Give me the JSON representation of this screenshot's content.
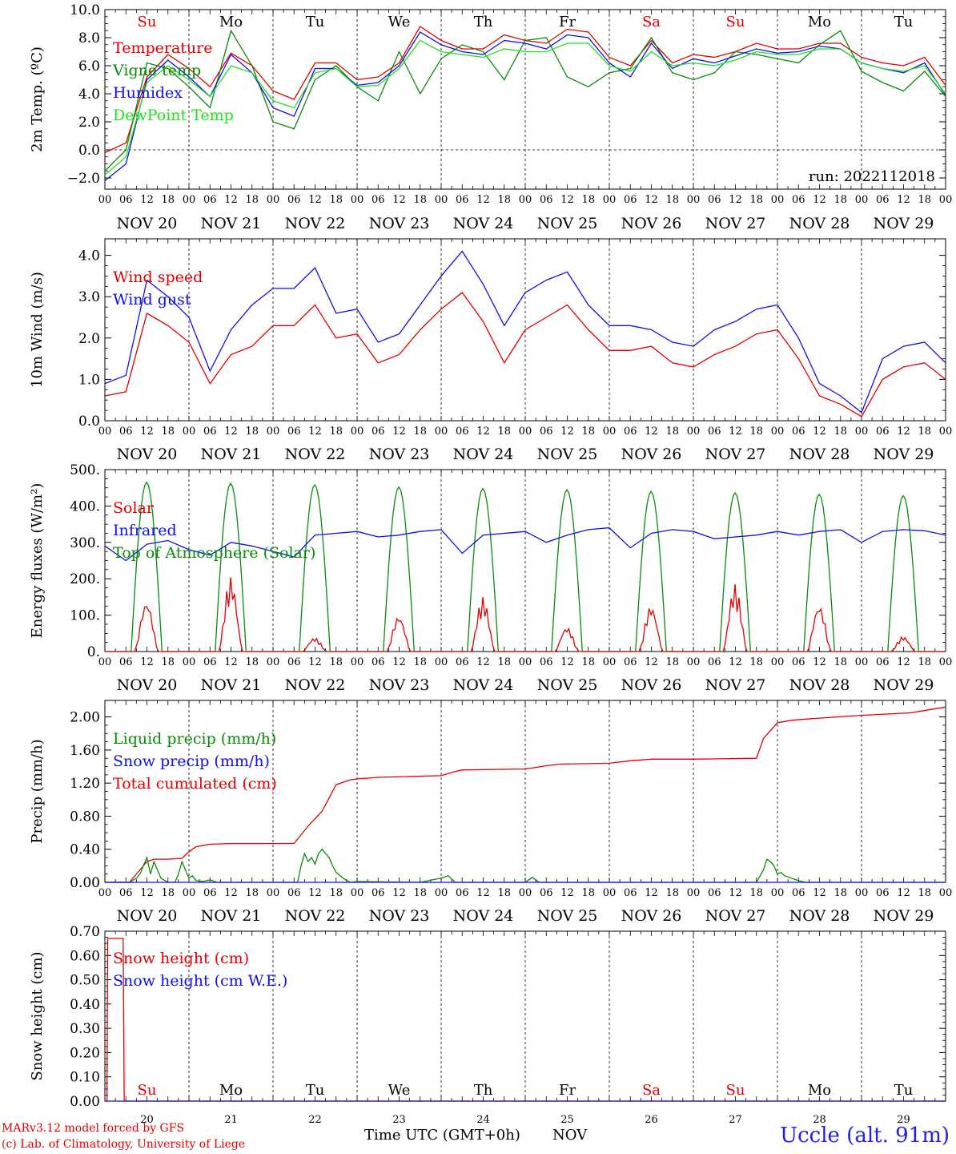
{
  "run_label": "run: 2022112018",
  "day_names": [
    "Su",
    "Mo",
    "Tu",
    "We",
    "Th",
    "Fr",
    "Sa",
    "Su",
    "Mo",
    "Tu"
  ],
  "weekend_days": [
    0,
    6,
    7
  ],
  "date_labels": [
    "NOV 20",
    "NOV 21",
    "NOV 22",
    "NOV 23",
    "NOV 24",
    "NOV 25",
    "NOV 26",
    "NOV 27",
    "NOV 28",
    "NOV 29"
  ],
  "hour_ticks": [
    "00",
    "06",
    "12",
    "18"
  ],
  "last_hour_tick": "00",
  "bottom_day_numbers": [
    "20",
    "21",
    "22",
    "23",
    "24",
    "25",
    "26",
    "27",
    "28",
    "29"
  ],
  "bottom_month": "NOV",
  "xlabel": "Time UTC (GMT+0h)",
  "footer": {
    "model": "MARv3.12 model forced by GFS",
    "credit": "(c) Lab. of Climatology, University of Liege",
    "station": "Uccle (alt. 91m)"
  },
  "colors": {
    "red": "#e00000",
    "green": "#0a8a0a",
    "blue": "#1010e0",
    "lightgreen": "#20e020",
    "grid": "#000000"
  },
  "chart_data": [
    {
      "type": "line",
      "ylabel": "2m Temp. (ºC)",
      "ylim": [
        -2.8,
        10.0
      ],
      "yticks": [
        -2.0,
        0.0,
        2.0,
        4.0,
        6.0,
        8.0,
        10.0
      ],
      "ytick_labels": [
        "−2.0",
        "0.0",
        "2.0",
        "4.0",
        "6.0",
        "8.0",
        "10.0"
      ],
      "x_hours": [
        0,
        6,
        12,
        18,
        24,
        30,
        36,
        42,
        48,
        54,
        60,
        66,
        72,
        78,
        84,
        90,
        96,
        102,
        108,
        114,
        120,
        126,
        132,
        138,
        144,
        150,
        156,
        162,
        168,
        174,
        180,
        186,
        192,
        198,
        204,
        210,
        216,
        222,
        228,
        234,
        240
      ],
      "zero_line": true,
      "legend": [
        "Temperature",
        "Vigne temp",
        "Humidex",
        "DewPoint Temp"
      ],
      "series": [
        {
          "name": "Temperature",
          "color": "red",
          "values": [
            -0.2,
            0.5,
            5.2,
            6.8,
            5.8,
            4.5,
            6.9,
            6.0,
            4.2,
            3.6,
            6.2,
            6.2,
            5.0,
            5.2,
            6.2,
            8.8,
            7.8,
            7.2,
            7.2,
            8.2,
            7.8,
            7.6,
            8.6,
            8.4,
            6.6,
            6.0,
            7.8,
            6.2,
            6.8,
            6.6,
            7.0,
            7.6,
            7.2,
            7.2,
            7.6,
            7.6,
            6.6,
            6.2,
            6.0,
            6.6,
            4.6
          ]
        },
        {
          "name": "Vigne temp",
          "color": "green",
          "values": [
            -1.5,
            0.0,
            6.2,
            5.8,
            4.5,
            3.0,
            8.5,
            6.0,
            2.0,
            1.5,
            5.0,
            6.0,
            4.5,
            3.5,
            7.0,
            4.0,
            6.5,
            7.5,
            7.0,
            5.0,
            7.8,
            8.0,
            5.2,
            4.5,
            5.5,
            5.8,
            8.0,
            5.5,
            5.0,
            5.5,
            7.0,
            6.8,
            6.5,
            6.2,
            7.5,
            8.5,
            5.6,
            4.8,
            4.2,
            5.6,
            3.8
          ]
        },
        {
          "name": "Humidex",
          "color": "blue",
          "values": [
            -2.2,
            -1.0,
            5.0,
            6.4,
            5.2,
            3.8,
            6.8,
            5.5,
            3.0,
            2.4,
            5.8,
            5.8,
            4.6,
            4.8,
            6.0,
            8.4,
            7.5,
            7.0,
            6.8,
            7.8,
            7.6,
            7.2,
            8.2,
            8.0,
            6.2,
            5.2,
            7.6,
            5.8,
            6.5,
            6.2,
            6.7,
            7.2,
            6.9,
            7.0,
            7.4,
            7.2,
            6.2,
            5.8,
            5.5,
            6.2,
            3.9
          ]
        },
        {
          "name": "DewPoint Temp",
          "color": "lightgreen",
          "values": [
            -1.8,
            -0.5,
            4.8,
            6.0,
            5.0,
            3.8,
            6.0,
            5.5,
            3.5,
            3.0,
            5.5,
            5.8,
            4.5,
            4.6,
            5.8,
            7.8,
            7.0,
            6.8,
            6.6,
            7.2,
            7.0,
            7.0,
            7.6,
            7.6,
            6.0,
            5.6,
            7.0,
            6.0,
            6.2,
            6.0,
            6.4,
            7.0,
            6.8,
            6.8,
            7.2,
            7.2,
            6.2,
            5.8,
            5.6,
            6.0,
            4.0
          ]
        }
      ]
    },
    {
      "type": "line",
      "ylabel": "10m Wind (m/s)",
      "ylim": [
        0.0,
        4.4
      ],
      "yticks": [
        0.0,
        1.0,
        2.0,
        3.0,
        4.0
      ],
      "ytick_labels": [
        "0.0",
        "1.0",
        "2.0",
        "3.0",
        "4.0"
      ],
      "x_hours": [
        0,
        6,
        12,
        18,
        24,
        30,
        36,
        42,
        48,
        54,
        60,
        66,
        72,
        78,
        84,
        90,
        96,
        102,
        108,
        114,
        120,
        126,
        132,
        138,
        144,
        150,
        156,
        162,
        168,
        174,
        180,
        186,
        192,
        198,
        204,
        210,
        216,
        222,
        228,
        234,
        240
      ],
      "legend": [
        "Wind speed",
        "Wind gust"
      ],
      "series": [
        {
          "name": "Wind speed",
          "color": "red",
          "values": [
            0.6,
            0.7,
            2.6,
            2.3,
            1.9,
            0.9,
            1.6,
            1.8,
            2.3,
            2.3,
            2.8,
            2.0,
            2.1,
            1.4,
            1.6,
            2.2,
            2.7,
            3.1,
            2.4,
            1.4,
            2.2,
            2.5,
            2.8,
            2.2,
            1.7,
            1.7,
            1.8,
            1.4,
            1.3,
            1.6,
            1.8,
            2.1,
            2.2,
            1.5,
            0.6,
            0.4,
            0.1,
            1.0,
            1.3,
            1.4,
            1.0
          ]
        },
        {
          "name": "Wind gust",
          "color": "blue",
          "values": [
            0.9,
            1.1,
            3.4,
            3.0,
            2.5,
            1.2,
            2.2,
            2.8,
            3.2,
            3.2,
            3.7,
            2.6,
            2.7,
            1.9,
            2.1,
            2.8,
            3.5,
            4.1,
            3.3,
            2.3,
            3.1,
            3.4,
            3.6,
            2.8,
            2.3,
            2.3,
            2.2,
            1.9,
            1.8,
            2.2,
            2.4,
            2.7,
            2.8,
            2.0,
            0.9,
            0.6,
            0.2,
            1.5,
            1.8,
            1.9,
            1.4
          ]
        }
      ]
    },
    {
      "type": "line",
      "ylabel": "Energy fluxes (W/m²)",
      "ylim": [
        0,
        500
      ],
      "yticks": [
        0,
        100,
        200,
        300,
        400,
        500
      ],
      "ytick_labels": [
        "0.",
        "100.",
        "200.",
        "300.",
        "400.",
        "500."
      ],
      "legend": [
        "Solar",
        "Infrared",
        "Top of Atmosphere (Solar)"
      ],
      "daylight": {
        "sunrise_hour": 7.5,
        "sunset_hour": 16.3
      },
      "toa_peaks": [
        465,
        462,
        458,
        452,
        448,
        445,
        440,
        436,
        432,
        428
      ],
      "solar_peaks": [
        140,
        205,
        38,
        100,
        150,
        68,
        128,
        185,
        130,
        42
      ],
      "infrared": {
        "color": "blue",
        "x": [
          0,
          6,
          12,
          18,
          24,
          30,
          36,
          42,
          48,
          54,
          60,
          66,
          72,
          78,
          84,
          90,
          96,
          102,
          108,
          114,
          120,
          126,
          132,
          138,
          144,
          150,
          156,
          162,
          168,
          174,
          180,
          186,
          192,
          198,
          204,
          210,
          216,
          222,
          228,
          234,
          240
        ],
        "values": [
          290,
          250,
          295,
          305,
          280,
          265,
          300,
          290,
          275,
          260,
          320,
          325,
          330,
          315,
          320,
          330,
          335,
          270,
          320,
          325,
          330,
          300,
          320,
          335,
          340,
          285,
          325,
          335,
          330,
          310,
          315,
          320,
          330,
          320,
          330,
          335,
          300,
          330,
          335,
          332,
          320
        ]
      }
    },
    {
      "type": "line",
      "ylabel": "Precip (mm/h)",
      "ylim": [
        0.0,
        2.2
      ],
      "yticks": [
        0.0,
        0.4,
        0.8,
        1.2,
        1.6,
        2.0
      ],
      "ytick_labels": [
        "0.00",
        "0.40",
        "0.80",
        "1.20",
        "1.60",
        "2.00"
      ],
      "legend": [
        "Liquid precip (mm/h)",
        "Snow precip (mm/h)",
        "Total cumulated (cm)"
      ],
      "series": [
        {
          "name": "Total cumulated (cm)",
          "color": "red",
          "x": [
            0,
            7,
            10,
            12,
            14,
            18,
            22,
            24,
            26,
            30,
            36,
            48,
            54,
            58,
            62,
            66,
            70,
            72,
            78,
            96,
            100,
            102,
            120,
            126,
            130,
            144,
            150,
            156,
            168,
            186,
            188,
            192,
            196,
            202,
            216,
            230,
            240
          ],
          "values": [
            0.0,
            0.0,
            0.15,
            0.25,
            0.28,
            0.28,
            0.29,
            0.37,
            0.43,
            0.46,
            0.47,
            0.47,
            0.47,
            0.68,
            0.86,
            1.18,
            1.24,
            1.25,
            1.27,
            1.29,
            1.34,
            1.36,
            1.37,
            1.41,
            1.43,
            1.44,
            1.47,
            1.49,
            1.49,
            1.5,
            1.74,
            1.93,
            1.96,
            1.98,
            2.02,
            2.05,
            2.12
          ]
        },
        {
          "name": "Liquid precip (mm/h)",
          "color": "green",
          "x": [
            0,
            7,
            9,
            10,
            11,
            12,
            13,
            14,
            16,
            18,
            20,
            21,
            22,
            23,
            24,
            25,
            26,
            28,
            30,
            32,
            34,
            48,
            55,
            56,
            57,
            58,
            59,
            60,
            61,
            62,
            63,
            64,
            65,
            66,
            68,
            70,
            72,
            90,
            96,
            98,
            100,
            120,
            122,
            124,
            186,
            188,
            189,
            190,
            191,
            192,
            193,
            194,
            196,
            198,
            200,
            240
          ],
          "values": [
            0,
            0,
            0.05,
            0.1,
            0.2,
            0.3,
            0.1,
            0.25,
            0.05,
            0.0,
            0.0,
            0.1,
            0.25,
            0.15,
            0.05,
            0.08,
            0.02,
            0.01,
            0.03,
            0.0,
            0.0,
            0.0,
            0.0,
            0.2,
            0.35,
            0.25,
            0.3,
            0.22,
            0.35,
            0.4,
            0.35,
            0.3,
            0.2,
            0.12,
            0.05,
            0.0,
            0.01,
            0.0,
            0.05,
            0.08,
            0.0,
            0.0,
            0.06,
            0.0,
            0.0,
            0.15,
            0.28,
            0.25,
            0.2,
            0.1,
            0.12,
            0.08,
            0.05,
            0.02,
            0.0,
            0.0
          ]
        },
        {
          "name": "Snow precip (mm/h)",
          "color": "blue",
          "x": [
            0,
            240
          ],
          "values": [
            0,
            0
          ]
        }
      ]
    },
    {
      "type": "line",
      "ylabel": "Snow height (cm)",
      "ylim": [
        0.0,
        0.7
      ],
      "yticks": [
        0.0,
        0.1,
        0.2,
        0.3,
        0.4,
        0.5,
        0.6,
        0.7
      ],
      "ytick_labels": [
        "0.00",
        "0.10",
        "0.20",
        "0.30",
        "0.40",
        "0.50",
        "0.60",
        "0.70"
      ],
      "legend": [
        "Snow height (cm)",
        "Snow height (cm W.E.)"
      ],
      "series": [
        {
          "name": "Snow height (cm)",
          "color": "red",
          "x": [
            0,
            0.6,
            0.8,
            5.2,
            5.5,
            240
          ],
          "values": [
            0,
            0,
            0.67,
            0.67,
            0,
            0
          ]
        },
        {
          "name": "Snow height (cm W.E.)",
          "color": "blue",
          "x": [
            0,
            240
          ],
          "values": [
            0,
            0
          ]
        }
      ]
    }
  ]
}
